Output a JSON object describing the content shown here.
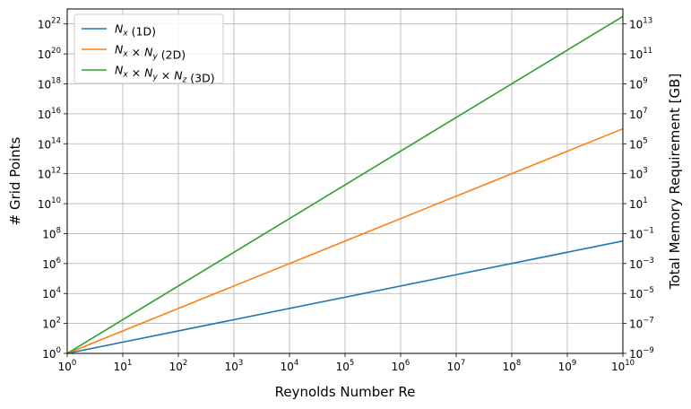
{
  "chart_data": {
    "type": "line",
    "title": "",
    "xlabel": "Reynolds Number Re",
    "ylabel": "# Grid Points",
    "y2label": "Total Memory Requirement [GB]",
    "xscale": "log",
    "yscale": "log",
    "xlim": [
      1,
      10000000000
    ],
    "ylim": [
      1,
      1e+23
    ],
    "y2lim": [
      1e-09,
      100000000000000.0
    ],
    "x_tick_exponents": [
      0,
      1,
      2,
      3,
      4,
      5,
      6,
      7,
      8,
      9,
      10
    ],
    "y_tick_exponents": [
      0,
      2,
      4,
      6,
      8,
      10,
      12,
      14,
      16,
      18,
      20,
      22
    ],
    "y2_tick_exponents": [
      -9,
      -7,
      -5,
      -3,
      -1,
      1,
      3,
      5,
      7,
      9,
      11,
      13
    ],
    "tick_base": "10",
    "grid": true,
    "legend_position": "upper-left",
    "series": [
      {
        "name": "Nx (1D)",
        "label_parts": [
          "N",
          "x",
          "",
          "",
          "",
          "",
          " (1D)"
        ],
        "color": "#1f77b4",
        "x": [
          1,
          10000000000
        ],
        "y": [
          1,
          32000000.0
        ]
      },
      {
        "name": "Nx × Ny (2D)",
        "label_parts": [
          "N",
          "x",
          " × N",
          "y",
          "",
          "",
          " (2D)"
        ],
        "color": "#ff7f0e",
        "x": [
          1,
          10000000000
        ],
        "y": [
          1,
          1000000000000000.0
        ]
      },
      {
        "name": "Nx × Ny × Nz (3D)",
        "label_parts": [
          "N",
          "x",
          " × N",
          "y",
          " × N",
          "z",
          " (3D)"
        ],
        "color": "#2ca02c",
        "x": [
          1,
          10000000000
        ],
        "y": [
          1,
          3.2e+22
        ]
      }
    ]
  }
}
